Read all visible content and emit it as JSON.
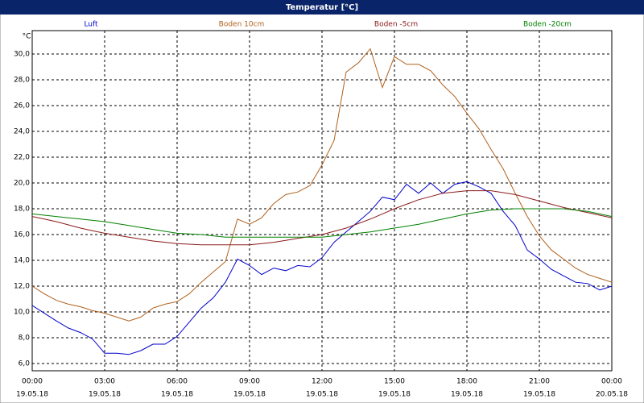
{
  "chart_data": {
    "type": "line",
    "title": "Temperatur [°C]",
    "y_unit": "°C",
    "x": [
      0,
      0.5,
      1,
      1.5,
      2,
      2.5,
      3,
      3.5,
      4,
      4.5,
      5,
      5.5,
      6,
      6.5,
      7,
      7.5,
      8,
      8.5,
      9,
      9.5,
      10,
      10.5,
      11,
      11.5,
      12,
      12.5,
      13,
      13.5,
      14,
      14.5,
      15,
      15.5,
      16,
      16.5,
      17,
      17.5,
      18,
      18.5,
      19,
      19.5,
      20,
      20.5,
      21,
      21.5,
      22,
      22.5,
      23,
      23.5,
      24
    ],
    "xlim": [
      0,
      24
    ],
    "xticks": [
      {
        "value": 0,
        "label": "00:00"
      },
      {
        "value": 3,
        "label": "03:00"
      },
      {
        "value": 6,
        "label": "06:00"
      },
      {
        "value": 9,
        "label": "09:00"
      },
      {
        "value": 12,
        "label": "12:00"
      },
      {
        "value": 15,
        "label": "15:00"
      },
      {
        "value": 18,
        "label": "18:00"
      },
      {
        "value": 21,
        "label": "21:00"
      },
      {
        "value": 24,
        "label": "00:00"
      }
    ],
    "xtick_dates": [
      "19.05.18",
      "19.05.18",
      "19.05.18",
      "19.05.18",
      "19.05.18",
      "19.05.18",
      "19.05.18",
      "19.05.18",
      "20.05.18"
    ],
    "ylim": [
      5.44,
      31.81
    ],
    "yticks": [
      {
        "value": 6,
        "label": "6,0"
      },
      {
        "value": 8,
        "label": "8,0"
      },
      {
        "value": 10,
        "label": "10,0"
      },
      {
        "value": 12,
        "label": "12,0"
      },
      {
        "value": 14,
        "label": "14,0"
      },
      {
        "value": 16,
        "label": "16,0"
      },
      {
        "value": 18,
        "label": "18,0"
      },
      {
        "value": 20,
        "label": "20,0"
      },
      {
        "value": 22,
        "label": "22,0"
      },
      {
        "value": 24,
        "label": "24,0"
      },
      {
        "value": 26,
        "label": "26,0"
      },
      {
        "value": 28,
        "label": "28,0"
      },
      {
        "value": 30,
        "label": "30,0"
      }
    ],
    "grid": true,
    "series": [
      {
        "name": "Luft",
        "color": "#0000cc",
        "values": [
          10.5,
          9.9,
          9.3,
          8.75,
          8.4,
          7.9,
          6.8,
          6.8,
          6.7,
          7.0,
          7.5,
          7.5,
          8.1,
          9.2,
          10.3,
          11.1,
          12.3,
          14.1,
          13.6,
          12.9,
          13.4,
          13.2,
          13.6,
          13.5,
          14.2,
          15.4,
          16.2,
          17.0,
          17.8,
          18.9,
          18.7,
          19.9,
          19.2,
          20.0,
          19.2,
          19.9,
          20.1,
          19.7,
          19.2,
          17.8,
          16.7,
          14.8,
          14.1,
          13.3,
          12.8,
          12.3,
          12.2,
          11.7,
          12.0
        ]
      },
      {
        "name": "Boden 10cm",
        "color": "#b0601c",
        "values": [
          12.0,
          11.4,
          10.9,
          10.6,
          10.4,
          10.1,
          9.9,
          9.6,
          9.3,
          9.6,
          10.3,
          10.6,
          10.8,
          11.4,
          12.3,
          13.1,
          13.9,
          17.2,
          16.8,
          17.3,
          18.4,
          19.1,
          19.3,
          19.8,
          21.4,
          23.3,
          28.6,
          29.3,
          30.4,
          27.4,
          29.8,
          29.2,
          29.2,
          28.7,
          27.6,
          26.7,
          25.4,
          24.2,
          22.6,
          21.1,
          19.2,
          17.4,
          15.9,
          14.8,
          14.1,
          13.4,
          12.9,
          12.6,
          12.3
        ]
      },
      {
        "name": "Boden -5cm",
        "color": "#8b1a1a",
        "values": [
          17.4,
          17.2,
          17.0,
          16.75,
          16.5,
          16.3,
          16.1,
          15.95,
          15.8,
          15.65,
          15.5,
          15.4,
          15.3,
          15.25,
          15.2,
          15.2,
          15.2,
          15.2,
          15.2,
          15.3,
          15.4,
          15.55,
          15.7,
          15.85,
          16.0,
          16.25,
          16.5,
          16.85,
          17.2,
          17.6,
          18.0,
          18.35,
          18.7,
          18.95,
          19.2,
          19.3,
          19.4,
          19.4,
          19.4,
          19.25,
          19.1,
          18.85,
          18.6,
          18.35,
          18.1,
          17.9,
          17.7,
          17.5,
          17.3
        ]
      },
      {
        "name": "Boden -20cm",
        "color": "#008000",
        "values": [
          17.6,
          17.5,
          17.4,
          17.3,
          17.2,
          17.1,
          17.0,
          16.85,
          16.7,
          16.55,
          16.4,
          16.25,
          16.1,
          16.05,
          16.0,
          15.9,
          15.8,
          15.8,
          15.8,
          15.8,
          15.8,
          15.8,
          15.8,
          15.8,
          15.8,
          15.9,
          16.0,
          16.1,
          16.2,
          16.35,
          16.5,
          16.65,
          16.8,
          17.0,
          17.2,
          17.4,
          17.6,
          17.75,
          17.9,
          17.95,
          18.0,
          18.0,
          18.0,
          18.0,
          18.0,
          17.9,
          17.8,
          17.6,
          17.4
        ]
      }
    ]
  }
}
